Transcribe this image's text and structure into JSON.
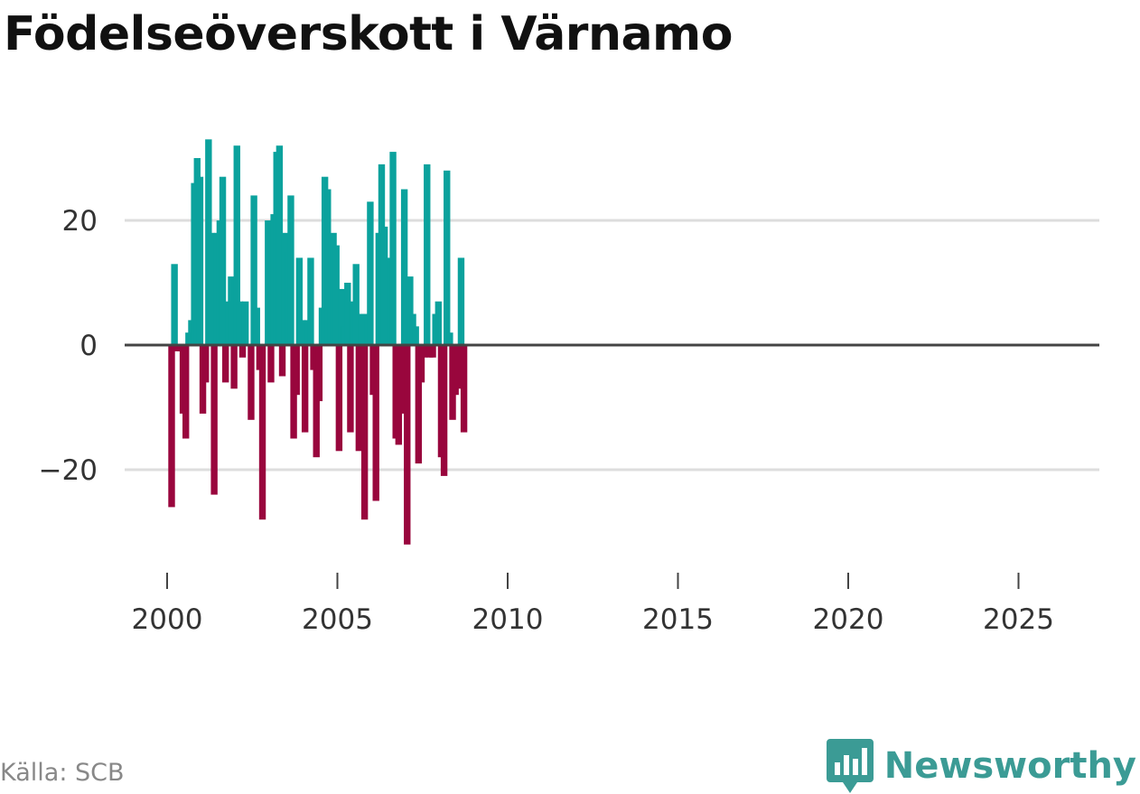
{
  "title": "Födelseöverskott i Värnamo",
  "source": "Källa: SCB",
  "brand": {
    "name": "Newsworthy",
    "icon": "bar-chart-speech-bubble-icon",
    "color": "#3b9b95"
  },
  "colors": {
    "positive": "#0ba29d",
    "negative": "#99063d",
    "grid": "#dddddd",
    "zero": "#444444"
  },
  "chart_data": {
    "type": "bar",
    "title": "Födelseöverskott i Värnamo",
    "xlabel": "",
    "ylabel": "",
    "ylim": [
      -36,
      36
    ],
    "xlim": [
      1999.25,
      2027.75
    ],
    "yticks": [
      -20,
      0,
      20
    ],
    "ytick_labels": [
      "−20",
      "0",
      "20"
    ],
    "xticks": [
      2000,
      2005,
      2010,
      2015,
      2020,
      2025
    ],
    "xtick_labels": [
      "2000",
      "2005",
      "2010",
      "2015",
      "2020",
      "2025"
    ],
    "frequency": "monthly",
    "start": [
      2000,
      1
    ],
    "grid": true,
    "series": [
      {
        "name": "Födelseöverskott",
        "values": [
          -26,
          13,
          -1,
          -1,
          -11,
          -15,
          2,
          4,
          26,
          30,
          27,
          -11,
          -6,
          33,
          18,
          -24,
          18,
          20,
          27,
          -6,
          7,
          11,
          -7,
          32,
          7,
          -2,
          7,
          0,
          -12,
          24,
          6,
          -4,
          -28,
          0,
          20,
          -6,
          21,
          31,
          32,
          -5,
          18,
          15,
          24,
          -15,
          -8,
          14,
          4,
          -14,
          4,
          14,
          -4,
          -18,
          -9,
          6,
          27,
          25,
          6,
          18,
          16,
          -17,
          9,
          3,
          10,
          -14,
          7,
          13,
          -17,
          5,
          -28,
          5,
          23,
          -8,
          -25,
          18,
          29,
          19,
          0,
          14,
          31,
          -15,
          -16,
          -11,
          25,
          -32,
          11,
          5,
          3,
          -19,
          -6,
          -2,
          29,
          -2,
          -2,
          5,
          7,
          -18,
          -21,
          28,
          2,
          -12,
          -8,
          -7,
          14,
          -14
        ]
      }
    ]
  }
}
